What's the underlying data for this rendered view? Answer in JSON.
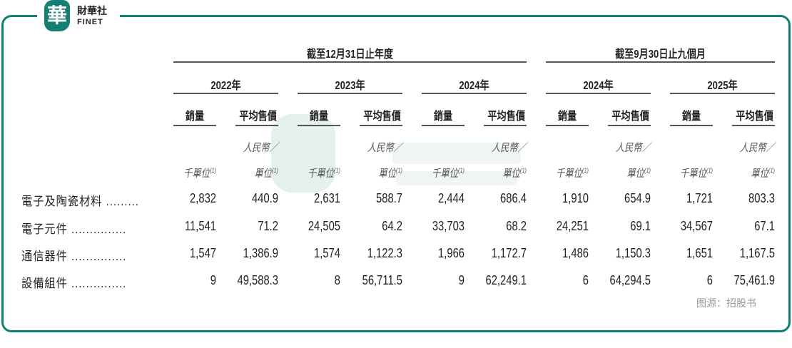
{
  "logo": {
    "mark": "華",
    "name_zh": "財華社",
    "name_en": "FINET"
  },
  "header": {
    "annual": "截至12月31日止年度",
    "ninemonth": "截至9月30日止九個月"
  },
  "years": [
    "2022年",
    "2023年",
    "2024年",
    "2024年",
    "2025年"
  ],
  "subheaders": {
    "volume": "銷量",
    "price": "平均售價"
  },
  "units": {
    "volume": "千單位",
    "price_line1": "人民幣／",
    "price_line2": "單位",
    "footnote": "(1)"
  },
  "rows": [
    {
      "label": "電子及陶瓷材料 .........",
      "values": [
        "2,832",
        "440.9",
        "2,631",
        "588.7",
        "2,444",
        "686.4",
        "1,910",
        "654.9",
        "1,721",
        "803.3"
      ]
    },
    {
      "label": "電子元件 ...............",
      "values": [
        "11,541",
        "71.2",
        "24,505",
        "64.2",
        "33,703",
        "68.2",
        "24,251",
        "69.1",
        "34,567",
        "67.1"
      ]
    },
    {
      "label": "通信器件 ...............",
      "values": [
        "1,547",
        "1,386.9",
        "1,574",
        "1,122.3",
        "1,966",
        "1,172.7",
        "1,486",
        "1,150.3",
        "1,651",
        "1,167.5"
      ]
    },
    {
      "label": "設備組件 ...............",
      "values": [
        "9",
        "49,588.3",
        "8",
        "56,711.5",
        "9",
        "62,249.1",
        "6",
        "64,294.5",
        "6",
        "75,461.9"
      ]
    }
  ],
  "source": "图源：招股书"
}
